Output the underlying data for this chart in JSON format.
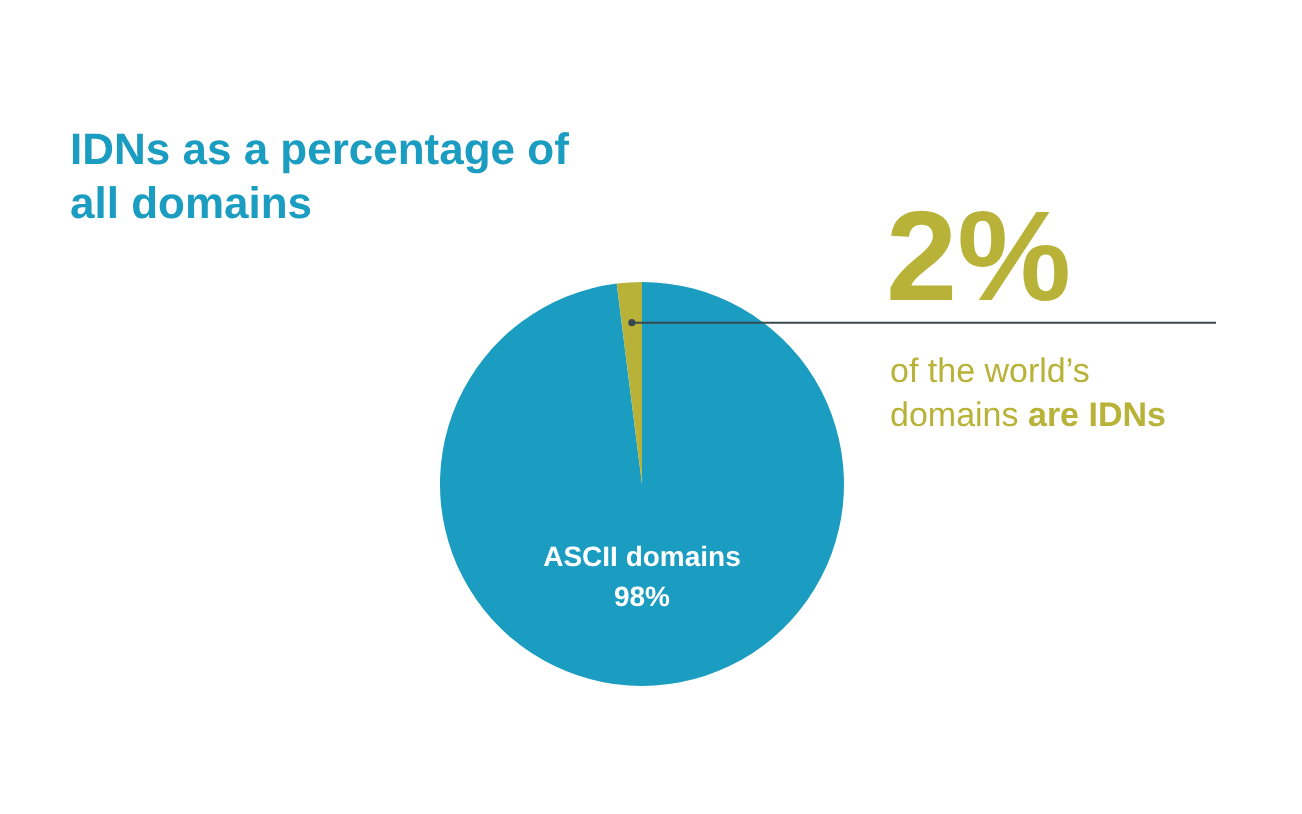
{
  "chart_data": {
    "type": "pie",
    "title": "IDNs as a percentage of all domains",
    "categories": [
      "ASCII domains",
      null
    ],
    "values": [
      98,
      2
    ],
    "colors": [
      "#1b9cc1",
      "#b8b338"
    ],
    "value_labels": [
      "98%",
      "2%"
    ],
    "annotations": [
      "of the world’s",
      "domains",
      "are IDNs"
    ]
  }
}
